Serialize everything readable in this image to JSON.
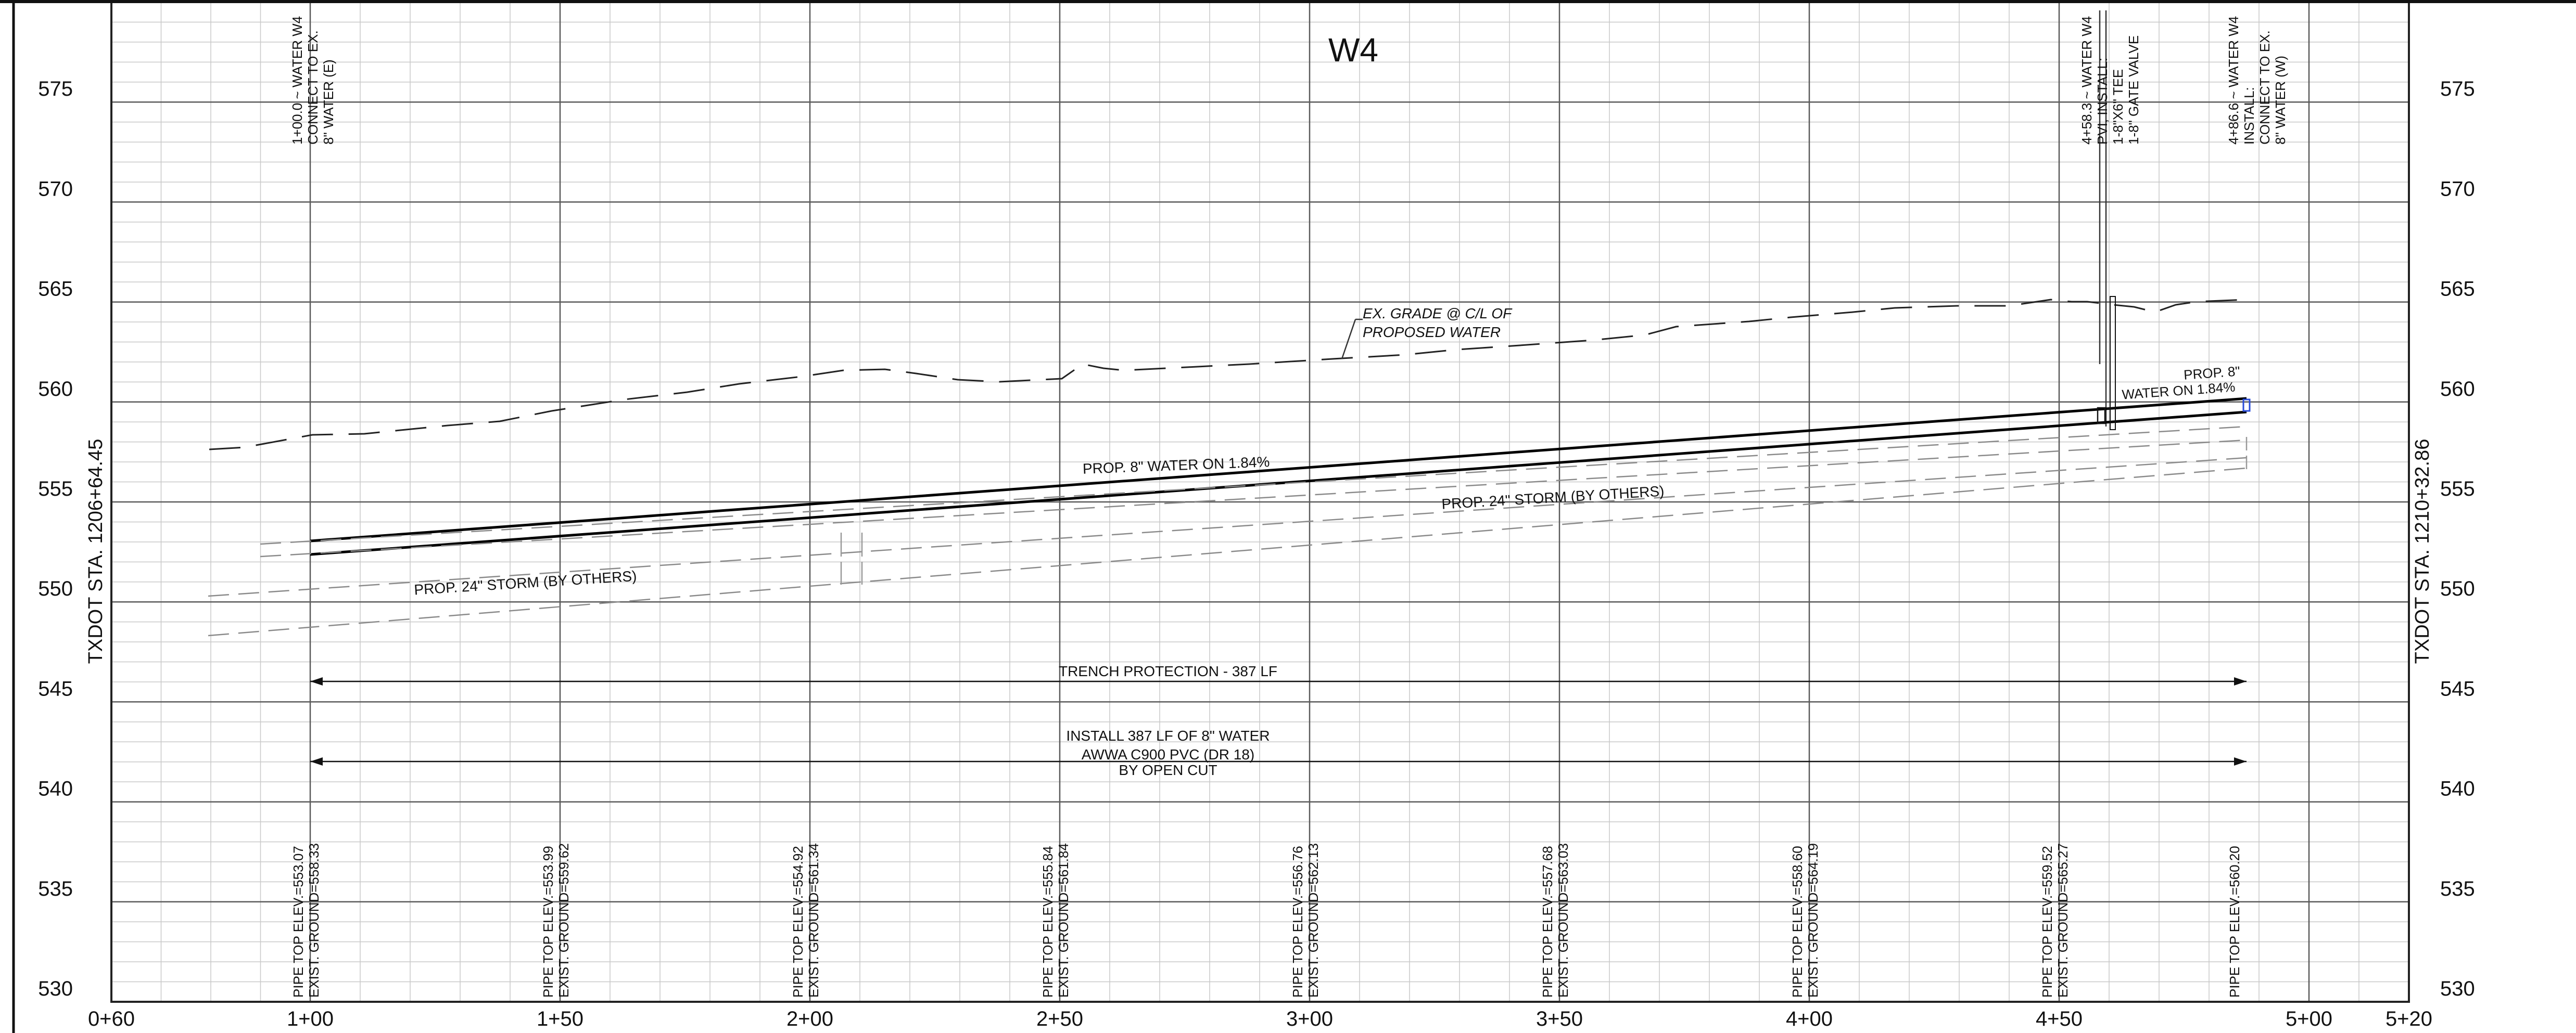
{
  "title": "W4",
  "left_axis_label": "TXDOT STA. 1206+64.45",
  "right_axis_label": "TXDOT STA. 1210+32.86",
  "elevation_labels": [
    "530",
    "535",
    "540",
    "545",
    "550",
    "555",
    "560",
    "565",
    "570",
    "575"
  ],
  "station_labels": [
    "0+60",
    "1+00",
    "1+50",
    "2+00",
    "2+50",
    "3+00",
    "3+50",
    "4+00",
    "4+50",
    "5+00",
    "5+20"
  ],
  "top_callouts": [
    [
      "1+00.0 ~ WATER W4",
      "CONNECT TO EX.",
      "8\" WATER (E)"
    ],
    [
      "4+58.3 ~ WATER W4",
      "PVI, INSTALL:",
      "1-8\"X6\" TEE",
      "1-8\" GATE VALVE"
    ],
    [
      "4+86.6 ~ WATER W4",
      "INSTALL:",
      "CONNECT TO EX.",
      "8\" WATER (W)"
    ]
  ],
  "grade_callout": [
    "EX. GRADE @ C/L OF",
    "PROPOSED WATER"
  ],
  "pipe_label": "PROP. 8\" WATER ON 1.84%",
  "pipe_label_end": [
    "PROP. 8\"",
    "WATER ON 1.84%"
  ],
  "storm_label_left": "PROP. 24\" STORM (BY OTHERS)",
  "storm_label_right": "PROP. 24\" STORM (BY OTHERS)",
  "trench_label": "TRENCH PROTECTION - 387 LF",
  "install_note": [
    "INSTALL 387 LF OF 8\" WATER",
    "AWWA C900 PVC (DR 18)",
    "BY OPEN CUT"
  ],
  "bottom_callouts": [
    [
      "PIPE TOP ELEV.=553.07",
      "EXIST. GROUND=558.33"
    ],
    [
      "PIPE TOP ELEV.=553.99",
      "EXIST. GROUND=559.62"
    ],
    [
      "PIPE TOP ELEV.=554.92",
      "EXIST. GROUND=561.34"
    ],
    [
      "PIPE TOP ELEV.=555.84",
      "EXIST. GROUND=561.84"
    ],
    [
      "PIPE TOP ELEV.=556.76",
      "EXIST. GROUND=562.13"
    ],
    [
      "PIPE TOP ELEV.=557.68",
      "EXIST. GROUND=563.03"
    ],
    [
      "PIPE TOP ELEV.=558.60",
      "EXIST. GROUND=564.19"
    ],
    [
      "PIPE TOP ELEV.=559.52",
      "EXIST. GROUND=565.27"
    ],
    [
      "PIPE TOP ELEV.=560.20"
    ]
  ]
}
